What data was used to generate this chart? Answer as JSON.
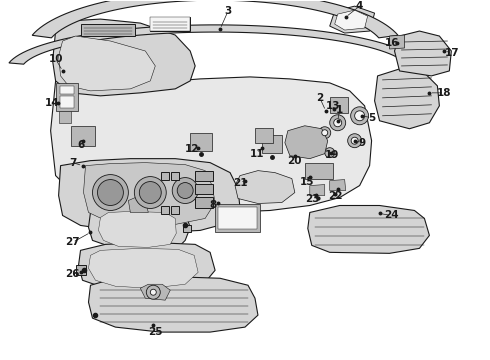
{
  "bg_color": "#ffffff",
  "line_color": "#1a1a1a",
  "fig_w": 4.9,
  "fig_h": 3.6,
  "dpi": 100,
  "font_size": 7.5,
  "lw_main": 0.8,
  "lw_thin": 0.5,
  "gray_light": "#d4d4d4",
  "gray_med": "#b8b8b8",
  "gray_dark": "#909090",
  "white": "#f5f5f5"
}
